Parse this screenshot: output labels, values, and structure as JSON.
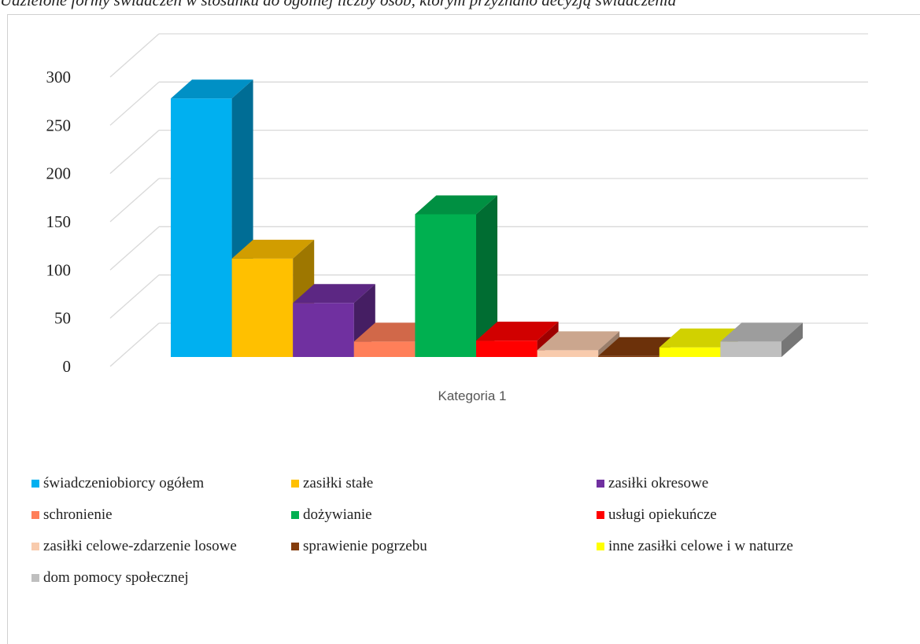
{
  "title": "Udzielone formy świadczeń w stosunku do ogólnej liczby osób, którym przyznano decyzją świadczenia",
  "chart_data": {
    "type": "bar",
    "title": "Udzielone formy świadczeń w stosunku do ogólnej liczby osób, którym przyznano decyzją świadczenia",
    "categories": [
      "Kategoria 1"
    ],
    "xlabel": "",
    "ylabel": "",
    "ylim": [
      0,
      300
    ],
    "yticks": [
      0,
      50,
      100,
      150,
      200,
      250,
      300
    ],
    "grid": true,
    "legend_position": "bottom",
    "series": [
      {
        "name": "świadczeniobiorcy ogółem",
        "values": [
          268
        ],
        "color": "#00b0f0"
      },
      {
        "name": "zasiłki stałe",
        "values": [
          102
        ],
        "color": "#ffc000"
      },
      {
        "name": "zasiłki okresowe",
        "values": [
          56
        ],
        "color": "#7030a0"
      },
      {
        "name": "schronienie",
        "values": [
          16
        ],
        "color": "#ff7f59"
      },
      {
        "name": "dożywianie",
        "values": [
          148
        ],
        "color": "#00b050"
      },
      {
        "name": "usługi opiekuńcze",
        "values": [
          17
        ],
        "color": "#ff0000"
      },
      {
        "name": "zasiłki celowe-zdarzenie losowe",
        "values": [
          7
        ],
        "color": "#f8cbad"
      },
      {
        "name": "sprawienie pogrzebu",
        "values": [
          1
        ],
        "color": "#843c0c"
      },
      {
        "name": "inne zasiłki celowe i w naturze",
        "values": [
          10
        ],
        "color": "#ffff00"
      },
      {
        "name": "dom pomocy społecznej",
        "values": [
          16
        ],
        "color": "#bfbfbf"
      }
    ]
  }
}
